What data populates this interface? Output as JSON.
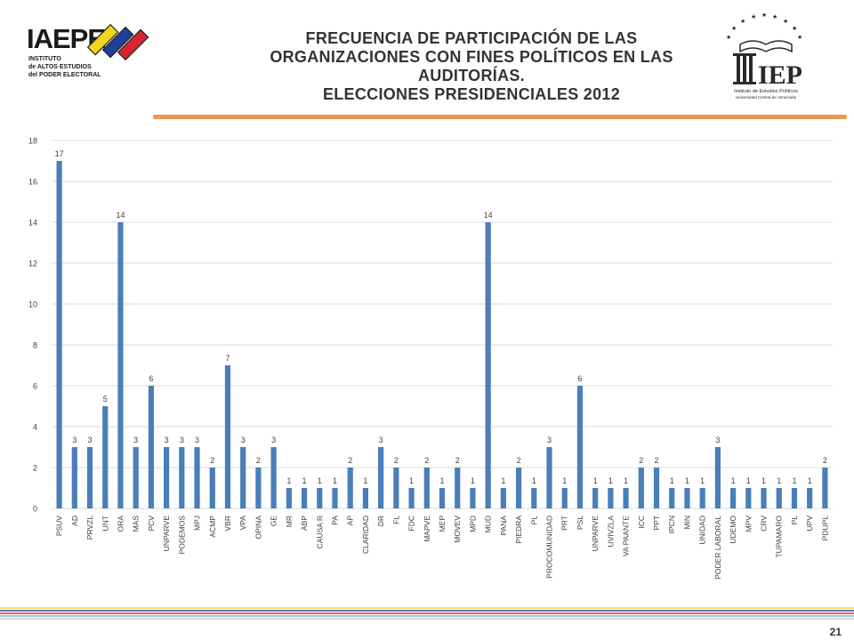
{
  "header": {
    "title_lines": [
      "FRECUENCIA DE PARTICIPACIÓN DE LAS",
      "ORGANIZACIONES CON FINES POLÍTICOS EN LAS",
      "AUDITORÍAS.",
      "ELECCIONES PRESIDENCIALES 2012"
    ],
    "logo_left": {
      "name": "IAEPE",
      "text": "IAEPE",
      "subtext": [
        "INSTITUTO",
        "de ALTOS ESTUDIOS",
        "del PODER ELECTORAL"
      ],
      "colors": {
        "text": "#1a1a1a",
        "yellow": "#f4d41c",
        "blue": "#1f3f9b",
        "red": "#d7262f"
      }
    },
    "logo_right": {
      "name": "IEP",
      "text": "IEP",
      "subtext": [
        "Instituto de Estudios Políticos",
        "Universidad Central de Venezuela"
      ],
      "color": "#2a2a2a"
    },
    "rule_color": "#e89a55"
  },
  "chart_data": {
    "type": "bar",
    "categories": [
      "PSUV",
      "AD",
      "PRVZL",
      "UNT",
      "ORA",
      "MAS",
      "PCV",
      "UNPARVE",
      "PODEMOS",
      "MPJ",
      "ACMP",
      "VBR",
      "VPA",
      "OPINA",
      "GE",
      "MR",
      "ABP",
      "CAUSA R",
      "PA",
      "AP",
      "CLARIDAD",
      "DR",
      "FL",
      "FDC",
      "MAPVE",
      "MEP",
      "MOVEV",
      "MPD",
      "MUD",
      "PANA",
      "PIEDRA",
      "PL",
      "PROCOMUNIDAD",
      "PRT",
      "PSL",
      "UNPARVE",
      "UVIVZLA",
      "VA PAANTE",
      "ICC",
      "PPT",
      "IPCN",
      "MIN",
      "UNIDAD",
      "PODER LABORAL",
      "UDEMO",
      "MPV",
      "CRV",
      "TUPAMARO",
      "PL",
      "UPV",
      "PDUPL"
    ],
    "values": [
      17,
      3,
      3,
      5,
      14,
      3,
      6,
      3,
      3,
      3,
      2,
      7,
      3,
      2,
      3,
      1,
      1,
      1,
      1,
      2,
      1,
      3,
      2,
      1,
      2,
      1,
      2,
      1,
      14,
      1,
      2,
      1,
      3,
      1,
      6,
      1,
      1,
      1,
      2,
      2,
      1,
      1,
      1,
      3,
      1,
      1,
      1,
      1,
      1,
      1,
      2
    ],
    "ylim": [
      0,
      18
    ],
    "yticks": [
      0,
      2,
      4,
      6,
      8,
      10,
      12,
      14,
      16,
      18
    ],
    "grid": true,
    "legend": "none",
    "bar_color": "#4a7ebb",
    "grid_color": "#d9d9d9",
    "label_color": "#404040"
  },
  "footer": {
    "page_number": "21",
    "line_colors": [
      "#f2d03b",
      "#2e4f9e",
      "#d23a3a",
      "#9aa8c8",
      "#c9c9c9"
    ]
  }
}
